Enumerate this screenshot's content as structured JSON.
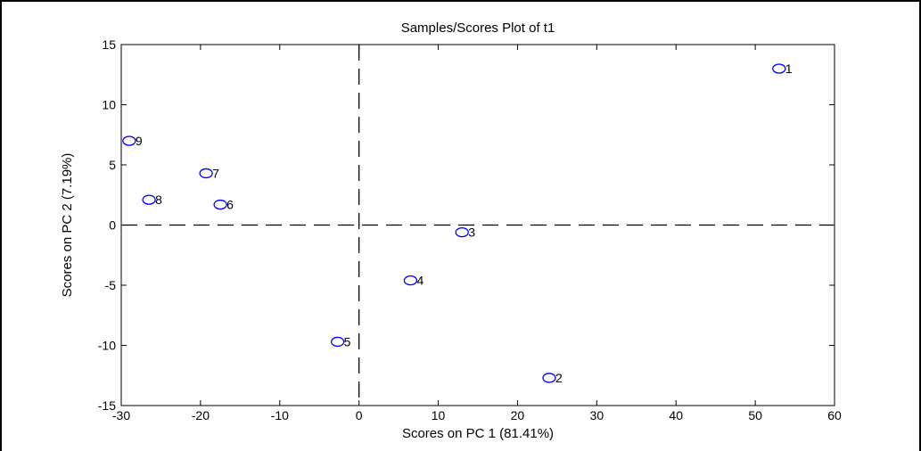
{
  "chart_data": {
    "type": "scatter",
    "title": "Samples/Scores Plot of t1",
    "xlabel": "Scores on PC 1 (81.41%)",
    "ylabel": "Scores on PC 2 (7.19%)",
    "xlim": [
      -30,
      60
    ],
    "ylim": [
      -15,
      15
    ],
    "xticks": [
      -30,
      -20,
      -10,
      0,
      10,
      20,
      30,
      40,
      50,
      60
    ],
    "yticks": [
      -15,
      -10,
      -5,
      0,
      5,
      10,
      15
    ],
    "grid": false,
    "reference_lines": {
      "x": 0,
      "y": 0,
      "style": "dashed"
    },
    "marker": {
      "shape": "circle-open",
      "color": "#0000ff"
    },
    "points": [
      {
        "label": "1",
        "x": 53.0,
        "y": 13.0
      },
      {
        "label": "2",
        "x": 24.0,
        "y": -12.7
      },
      {
        "label": "3",
        "x": 13.0,
        "y": -0.6
      },
      {
        "label": "4",
        "x": 6.5,
        "y": -4.6
      },
      {
        "label": "5",
        "x": -2.7,
        "y": -9.7
      },
      {
        "label": "6",
        "x": -17.5,
        "y": 1.7
      },
      {
        "label": "7",
        "x": -19.3,
        "y": 4.3
      },
      {
        "label": "8",
        "x": -26.5,
        "y": 2.1
      },
      {
        "label": "9",
        "x": -29.0,
        "y": 7.0
      }
    ]
  }
}
